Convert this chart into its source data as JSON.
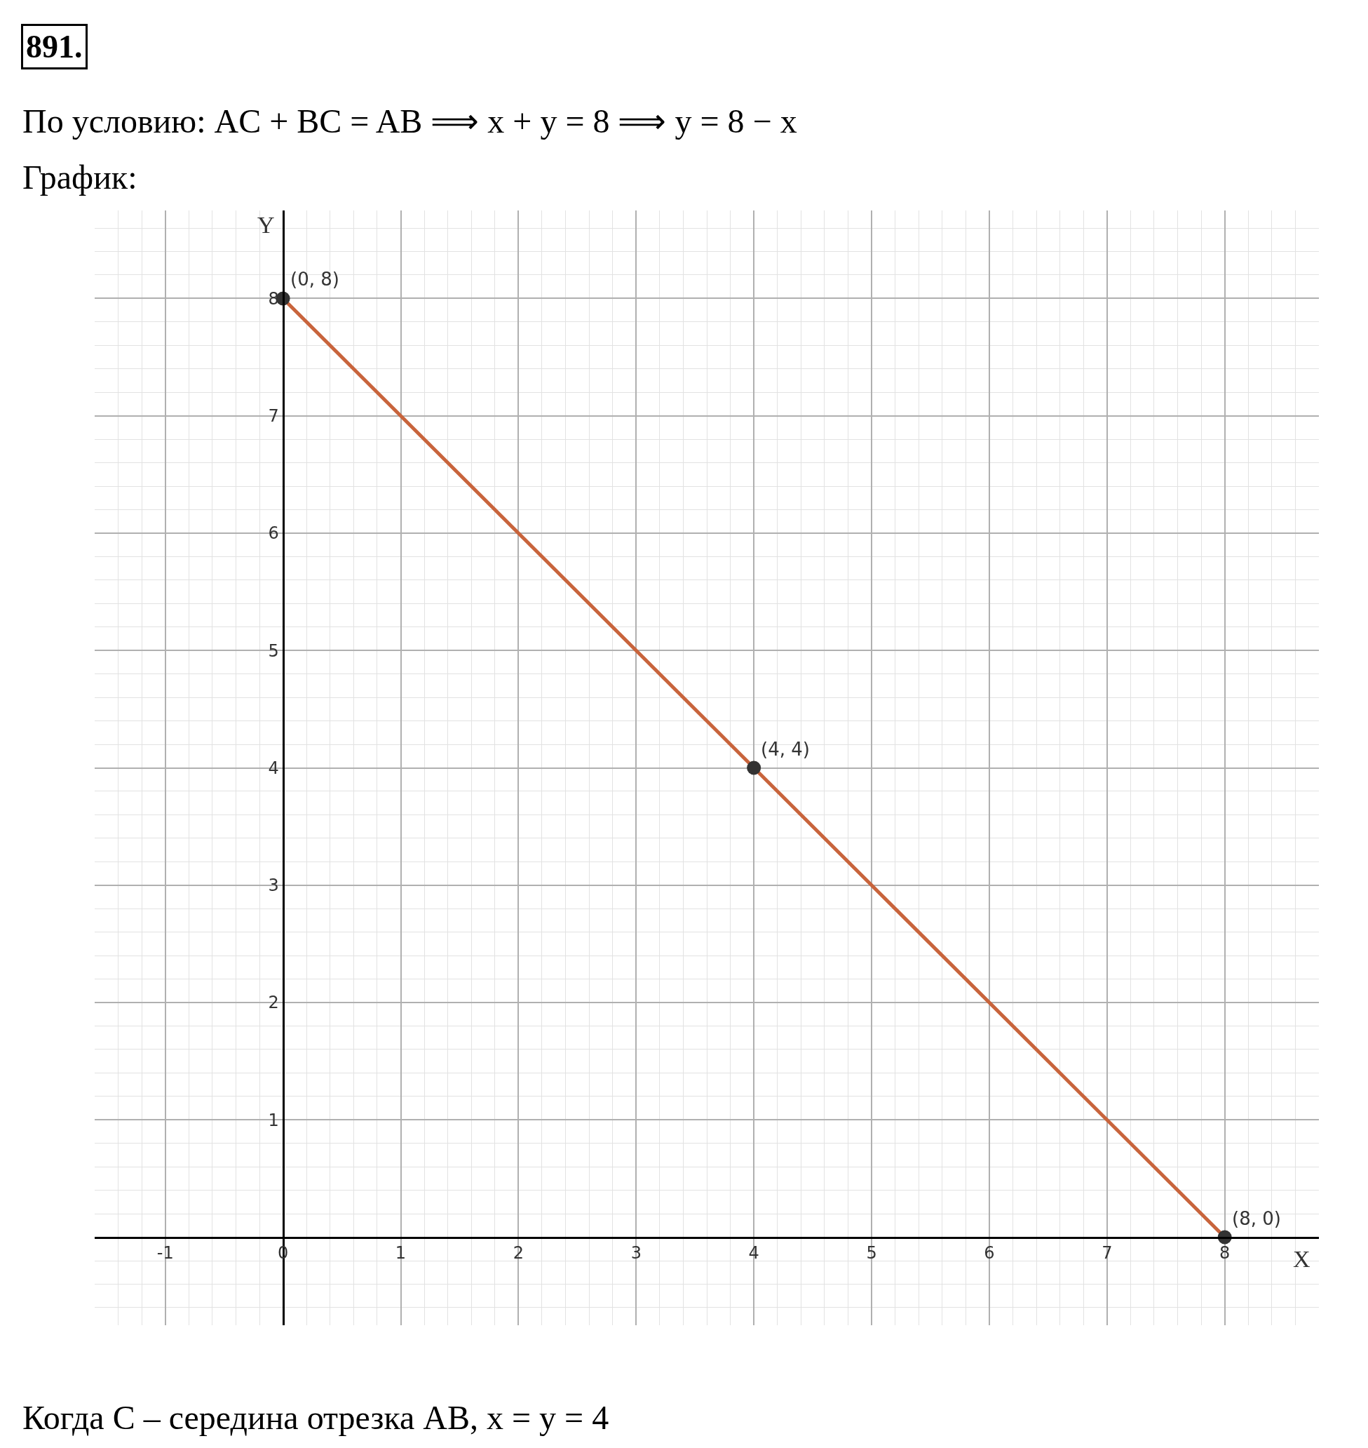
{
  "chart_data": {
    "type": "line",
    "title": "891.",
    "subtitle": "По условию: AC + BC = AB ⟹ x + y = 8 ⟹ y = 8 − x",
    "xlabel": "X",
    "ylabel": "Y",
    "annotations": [
      "График:",
      "Когда C – середина отрезка AB, x = y = 4",
      {
        "text": "(0, 8)",
        "x": 0,
        "y": 8
      },
      {
        "text": "(4, 4)",
        "x": 4,
        "y": 4
      },
      {
        "text": "(8, 0)",
        "x": 8,
        "y": 0
      }
    ],
    "series": [
      {
        "color": "#c8643c",
        "x": [
          0,
          8
        ],
        "values": [
          8,
          0
        ],
        "marker": "none"
      },
      {
        "type": "scatter",
        "color": "#333333",
        "x": [
          0,
          4,
          8
        ],
        "values": [
          8,
          4,
          0
        ],
        "marker": "circle"
      }
    ],
    "xlim": [
      -1.6,
      8.8
    ],
    "ylim": [
      -0.75,
      8.75
    ],
    "xticks": [
      -1,
      0,
      1,
      2,
      3,
      4,
      5,
      6,
      7,
      8
    ],
    "yticks": [
      1,
      2,
      3,
      4,
      5,
      6,
      7,
      8
    ],
    "grid": true
  }
}
